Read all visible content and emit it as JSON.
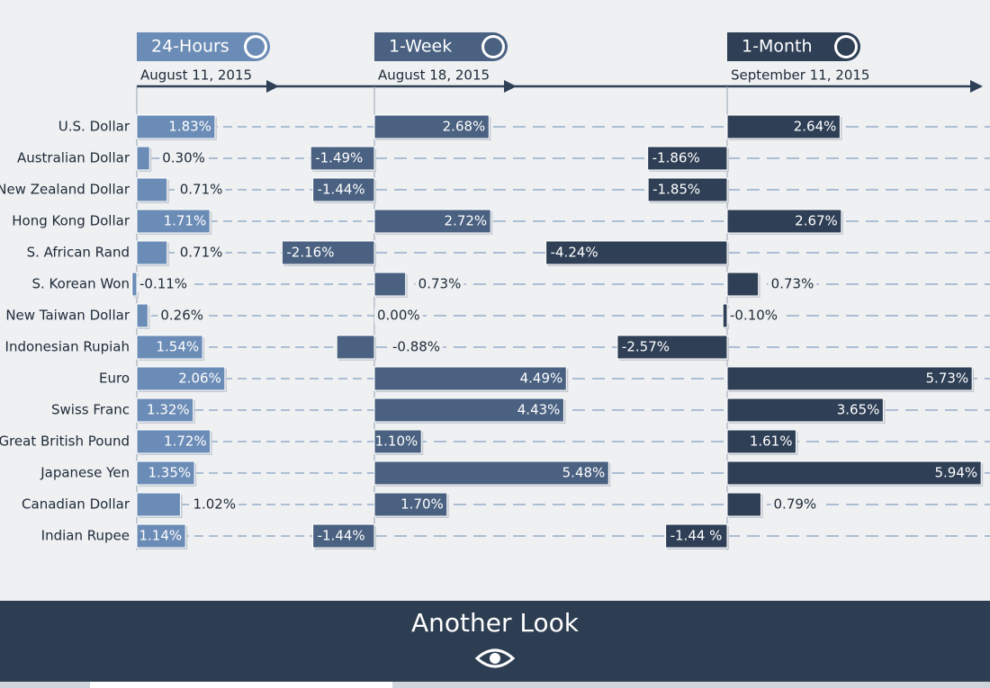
{
  "chart_data": {
    "type": "bar",
    "categories": [
      "U.S. Dollar",
      "Australian Dollar",
      "New Zealand Dollar",
      "Hong Kong Dollar",
      "S. African Rand",
      "S. Korean Won",
      "New Taiwan Dollar",
      "Indonesian Rupiah",
      "Euro",
      "Swiss Franc",
      "Great British Pound",
      "Japanese Yen",
      "Canadian Dollar",
      "Indian Rupee"
    ],
    "series": [
      {
        "name": "24-Hours",
        "date": "August 11, 2015",
        "color": "#6b8cb6",
        "values": [
          1.83,
          0.3,
          0.71,
          1.71,
          0.71,
          -0.11,
          0.26,
          1.54,
          2.06,
          1.32,
          1.72,
          1.35,
          1.02,
          1.14
        ],
        "value_labels": [
          "1.83%",
          "0.30%",
          "0.71%",
          "1.71%",
          "0.71%",
          "-0.11%",
          "0.26%",
          "1.54%",
          "2.06%",
          "1.32%",
          "1.72%",
          "1.35%",
          "1.02%",
          "1.14%"
        ]
      },
      {
        "name": "1-Week",
        "date": "August 18, 2015",
        "color": "#4a6181",
        "values": [
          2.68,
          -1.49,
          -1.44,
          2.72,
          -2.16,
          0.73,
          0.0,
          -0.88,
          4.49,
          4.43,
          1.1,
          5.48,
          1.7,
          -1.44
        ],
        "value_labels": [
          "2.68%",
          "-1.49%",
          "-1.44%",
          "2.72%",
          "-2.16%",
          "0.73%",
          "0.00%",
          "-0.88%",
          "4.49%",
          "4.43%",
          "1.10%",
          "5.48%",
          "1.70%",
          "-1.44%"
        ]
      },
      {
        "name": "1-Month",
        "date": "September 11, 2015",
        "color": "#2f3f56",
        "values": [
          2.64,
          -1.86,
          -1.85,
          2.67,
          -4.24,
          0.73,
          -0.1,
          -2.57,
          5.73,
          3.65,
          1.61,
          5.94,
          0.79,
          -1.44
        ],
        "value_labels": [
          "2.64%",
          "-1.86%",
          "-1.85%",
          "2.67%",
          "-4.24%",
          "0.73%",
          "-0.10%",
          "-2.57%",
          "5.73%",
          "3.65%",
          "1.61%",
          "5.94%",
          "0.79%",
          "-1.44 %"
        ]
      }
    ]
  },
  "footer": {
    "title": "Another Look"
  }
}
